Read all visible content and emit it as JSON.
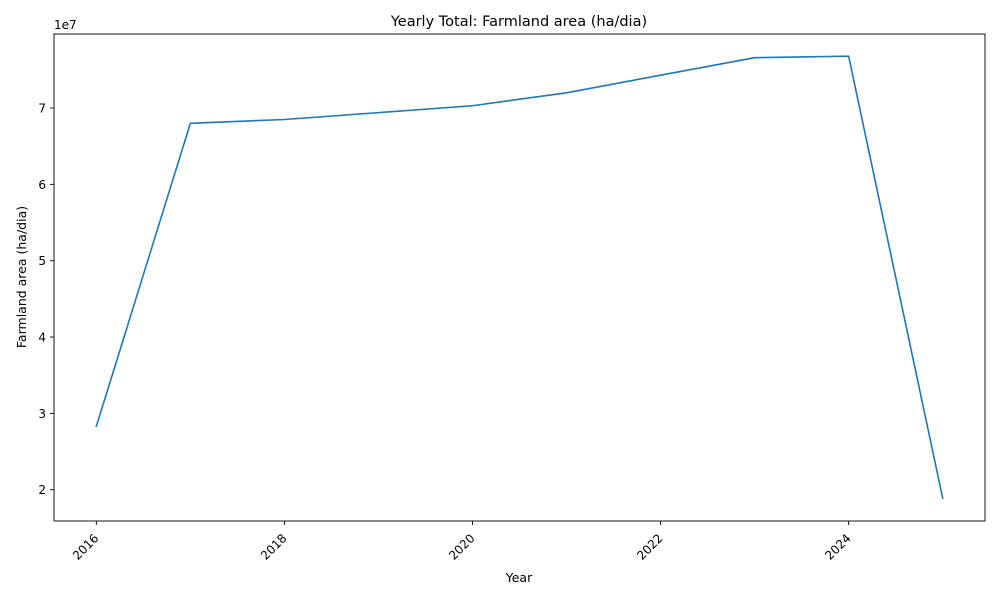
{
  "chart_data": {
    "type": "line",
    "title": "Yearly Total: Farmland area (ha/dia)",
    "xlabel": "Year",
    "ylabel": "Farmland area (ha/dia)",
    "y_offset_label": "1e7",
    "x": [
      2016,
      2017,
      2018,
      2019,
      2020,
      2021,
      2022,
      2023,
      2024,
      2025
    ],
    "series": [
      {
        "values": [
          28300000,
          68000000,
          68500000,
          69400000,
          70300000,
          72000000,
          74300000,
          76600000,
          76800000,
          18900000
        ],
        "color": "#1f77b4"
      }
    ],
    "xlim": [
      2015.55,
      2025.45
    ],
    "ylim": [
      15900000,
      79700000
    ],
    "x_ticks": [
      2016,
      2018,
      2020,
      2022,
      2024
    ],
    "x_tick_labels": [
      "2016",
      "2018",
      "2020",
      "2022",
      "2024"
    ],
    "y_ticks": [
      20000000,
      30000000,
      40000000,
      50000000,
      60000000,
      70000000
    ],
    "y_tick_labels": [
      "2",
      "3",
      "4",
      "5",
      "6",
      "7"
    ],
    "x_tick_rotation": -45,
    "grid": false,
    "legend": "none"
  }
}
